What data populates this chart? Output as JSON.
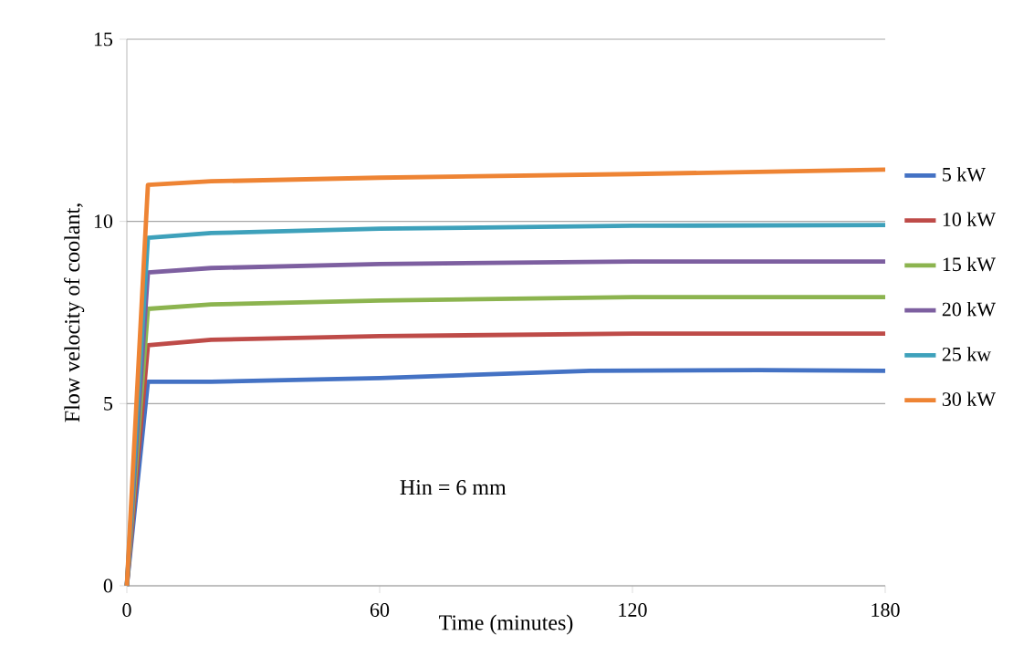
{
  "chart_data": {
    "type": "line",
    "xlabel": "Time (minutes)",
    "ylabel": "Flow velocity of coolant,",
    "annotations": [
      "Hin = 6 mm"
    ],
    "xlim": [
      0,
      180
    ],
    "ylim": [
      0,
      15
    ],
    "xticks": [
      0,
      60,
      120,
      180
    ],
    "yticks": [
      0,
      5,
      10,
      15
    ],
    "grid": "y",
    "legend": "right",
    "marker": "none",
    "line_style": "solid",
    "series": [
      {
        "name": "5 kW",
        "color": "#4472c4",
        "x": [
          0,
          5,
          20,
          60,
          110,
          150,
          180
        ],
        "values": [
          0,
          5.6,
          5.6,
          5.7,
          5.9,
          5.92,
          5.9
        ]
      },
      {
        "name": "10 kW",
        "color": "#be4b48",
        "x": [
          0,
          5,
          20,
          60,
          120,
          180
        ],
        "values": [
          0,
          6.6,
          6.75,
          6.85,
          6.92,
          6.92
        ]
      },
      {
        "name": "15 kW",
        "color": "#8cb44f",
        "x": [
          0,
          5,
          20,
          60,
          120,
          180
        ],
        "values": [
          0,
          7.6,
          7.72,
          7.83,
          7.92,
          7.92
        ]
      },
      {
        "name": "20 kW",
        "color": "#7d5fa0",
        "x": [
          0,
          5,
          20,
          60,
          120,
          180
        ],
        "values": [
          0,
          8.6,
          8.72,
          8.83,
          8.9,
          8.9
        ]
      },
      {
        "name": "25 kw",
        "color": "#3ea1bb",
        "x": [
          0,
          5,
          20,
          60,
          120,
          180
        ],
        "values": [
          0,
          9.55,
          9.68,
          9.8,
          9.88,
          9.9
        ]
      },
      {
        "name": "30 kW",
        "color": "#ee8434",
        "x": [
          0,
          5,
          20,
          60,
          120,
          180
        ],
        "values": [
          0,
          11.0,
          11.1,
          11.2,
          11.3,
          11.42
        ]
      }
    ]
  }
}
